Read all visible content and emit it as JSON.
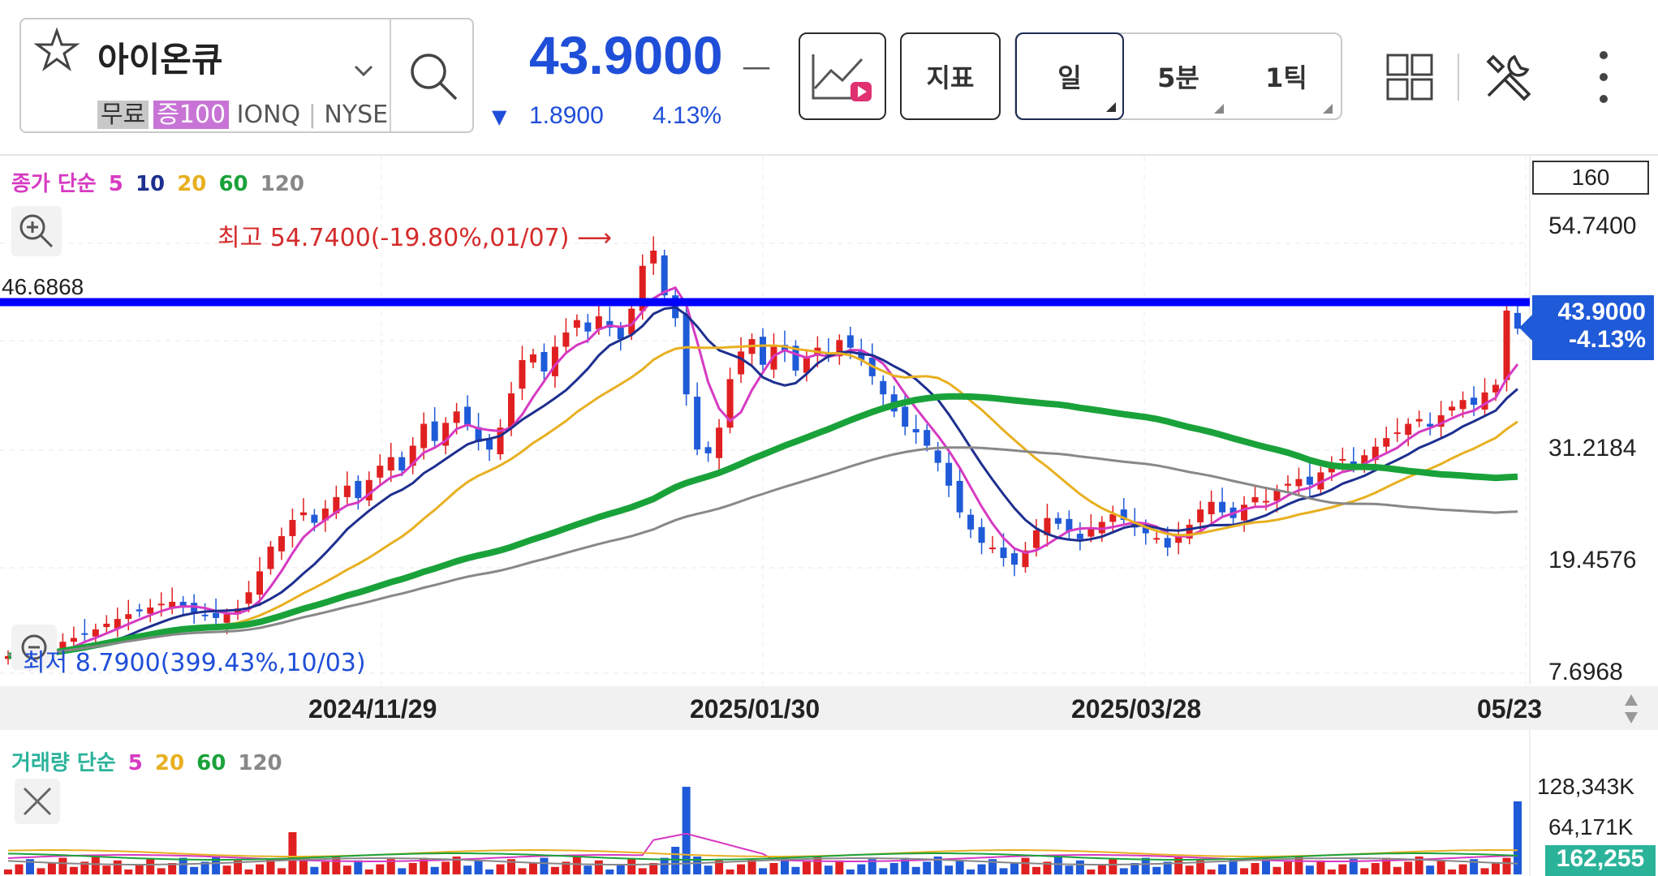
{
  "header": {
    "stock_name": "아이온큐",
    "tag_free": "무료",
    "tag_margin": "증100",
    "ticker": "IONQ",
    "exchange": "NYSE",
    "price": "43.9000",
    "price_dash": "—",
    "change_arrow": "▼",
    "change": "1.8900",
    "change_pct": "4.13%",
    "indicator_button": "지표",
    "periods": [
      "일",
      "5분",
      "1틱"
    ],
    "selected_period": "일"
  },
  "chart": {
    "ma_legend": {
      "label": "종가 단순",
      "items": [
        {
          "text": "5",
          "color": "#d63ac2"
        },
        {
          "text": "10",
          "color": "#1d2f8f"
        },
        {
          "text": "20",
          "color": "#e8b021"
        },
        {
          "text": "60",
          "color": "#1aa23a"
        },
        {
          "text": "120",
          "color": "#888888"
        }
      ]
    },
    "count": "160",
    "high_label": "최고 54.7400(-19.80%,01/07)",
    "low_label": "최저 8.7900(399.43%,10/03)",
    "hline_value": "46.6868",
    "current_price": "43.9000",
    "current_pct": "-4.13%",
    "colors": {
      "up": "#e02020",
      "down": "#1f5ad8",
      "hline": "#0000ff"
    }
  },
  "chart_data": {
    "type": "candlestick",
    "y_ticks": [
      "54.7400",
      "31.2184",
      "19.4576",
      "7.6968"
    ],
    "x_ticks": [
      "2024/11/29",
      "2025/01/30",
      "2025/03/28",
      "05/23"
    ],
    "ylim": [
      7.6968,
      54.74
    ],
    "high": {
      "value": 54.74,
      "date": "01/07"
    },
    "low": {
      "value": 8.79,
      "date": "10/03"
    },
    "horizontal_line": 46.6868,
    "last_close": 43.9,
    "close_approx": [
      9.5,
      9.8,
      9.2,
      10.1,
      10.6,
      11.0,
      11.4,
      11.8,
      12.3,
      12.9,
      13.4,
      13.9,
      14.2,
      14.6,
      15.0,
      15.2,
      14.6,
      14.1,
      13.8,
      13.5,
      13.9,
      14.5,
      16.2,
      18.4,
      21.0,
      22.1,
      23.8,
      24.6,
      23.5,
      25.0,
      26.2,
      27.4,
      26.1,
      28.0,
      29.5,
      30.4,
      29.0,
      31.6,
      33.9,
      32.1,
      34.0,
      35.2,
      33.8,
      32.0,
      31.2,
      33.5,
      37.1,
      40.6,
      41.2,
      39.4,
      42.0,
      43.5,
      44.8,
      43.6,
      45.2,
      44.0,
      42.8,
      46.0,
      50.5,
      52.1,
      47.4,
      45.0,
      37.0,
      31.2,
      30.8,
      33.5,
      38.6,
      41.5,
      42.8,
      40.1,
      42.2,
      41.6,
      39.5,
      40.8,
      41.9,
      41.0,
      42.7,
      41.9,
      40.6,
      38.9,
      37.0,
      35.2,
      33.6,
      33.0,
      31.6,
      29.8,
      27.4,
      24.6,
      22.8,
      21.4,
      20.9,
      19.8,
      19.1,
      20.6,
      22.7,
      24.0,
      23.4,
      22.6,
      21.8,
      22.9,
      23.6,
      24.4,
      23.8,
      23.0,
      22.4,
      21.9,
      20.9,
      22.1,
      23.3,
      24.9,
      25.7,
      24.6,
      24.0,
      25.4,
      26.2,
      25.8,
      26.9,
      27.6,
      28.1,
      27.5,
      28.8,
      29.6,
      30.2,
      29.4,
      30.6,
      31.5,
      32.4,
      33.0,
      33.9,
      34.4,
      33.6,
      34.8,
      35.7,
      36.4,
      35.9,
      37.2,
      38.0,
      45.8,
      43.9
    ],
    "volume_ticks": [
      "128,343K",
      "64,171K"
    ],
    "last_volume": "162,255"
  },
  "volume": {
    "legend": {
      "label": "거래량 단순",
      "items": [
        {
          "text": "5",
          "color": "#d63ac2"
        },
        {
          "text": "20",
          "color": "#e8b021"
        },
        {
          "text": "60",
          "color": "#1aa23a"
        },
        {
          "text": "120",
          "color": "#888888"
        }
      ]
    }
  }
}
